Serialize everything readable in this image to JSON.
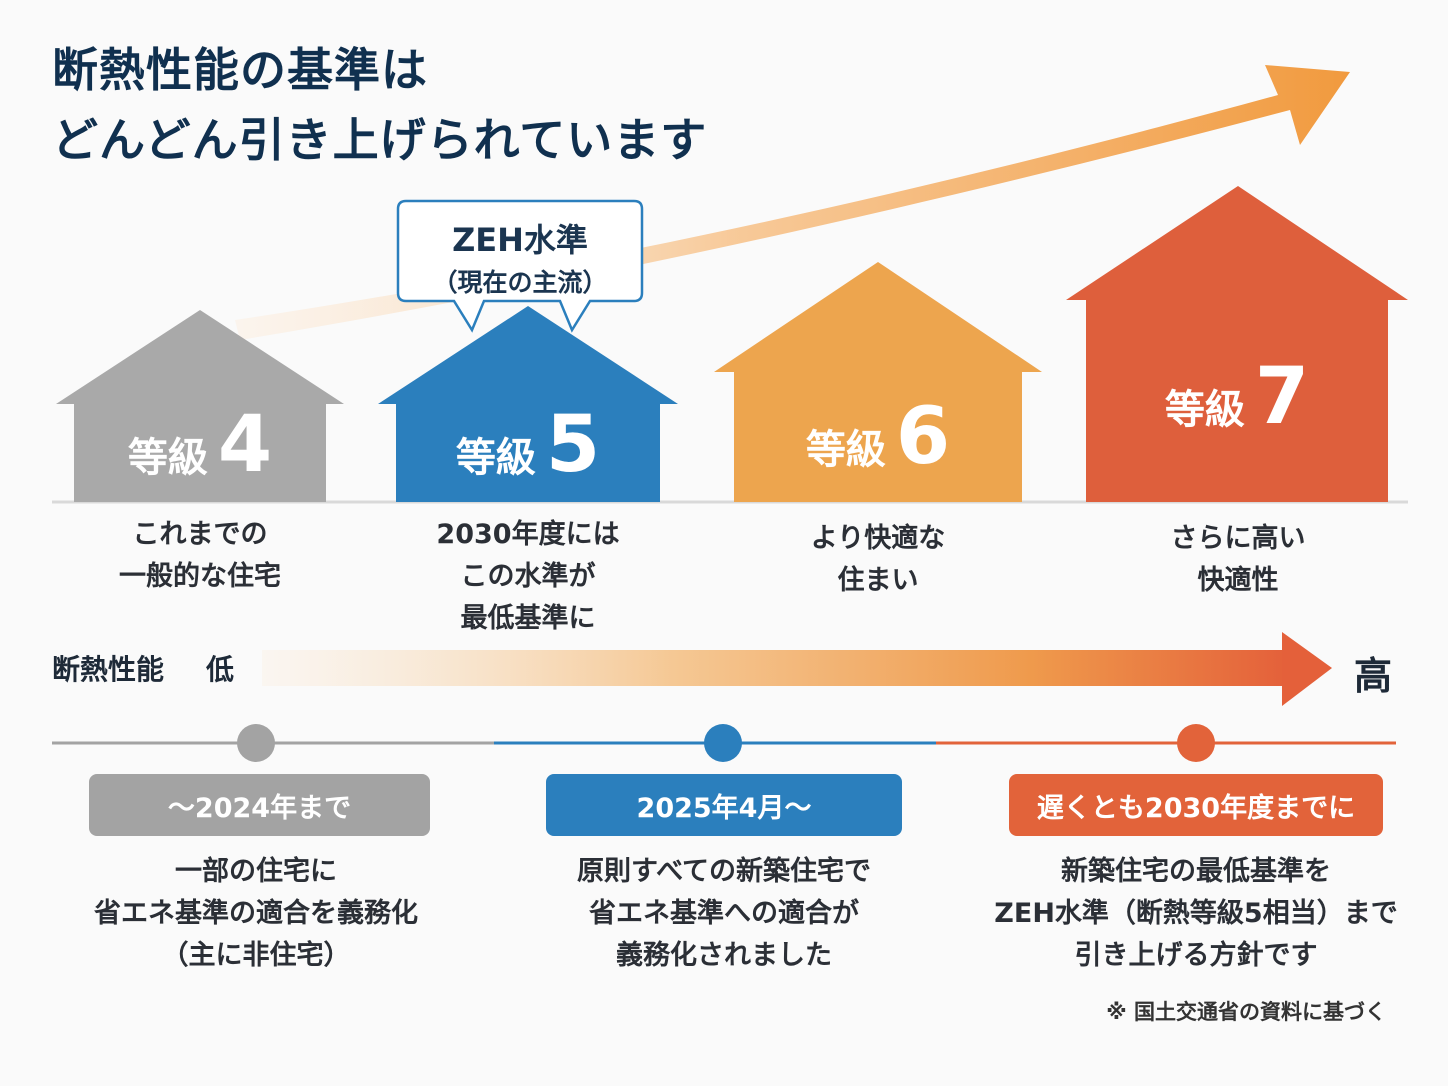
{
  "title": {
    "line1": "断熱性能の基準は",
    "line2": "どんどん引き上げられています"
  },
  "bubble": {
    "line1": "ZEH水準",
    "line2": "（現在の主流）"
  },
  "houses": [
    {
      "label": "等級",
      "number": "4",
      "color": "#a9a9a9",
      "desc": [
        "これまでの",
        "一般的な住宅"
      ]
    },
    {
      "label": "等級",
      "number": "5",
      "color": "#2b7fbd",
      "desc": [
        "2030年度には",
        "この水準が",
        "最低基準に"
      ]
    },
    {
      "label": "等級",
      "number": "6",
      "color": "#eda54e",
      "desc": [
        "より快適な",
        "住まい"
      ]
    },
    {
      "label": "等級",
      "number": "7",
      "color": "#de5f3c",
      "desc": [
        "さらに高い",
        "快適性"
      ]
    }
  ],
  "scale": {
    "label": "断熱性能",
    "low": "低",
    "high": "高"
  },
  "timeline": [
    {
      "period": "〜2024年まで",
      "color": "#a3a3a3",
      "desc": [
        "一部の住宅に",
        "省エネ基準の適合を義務化",
        "（主に非住宅）"
      ]
    },
    {
      "period": "2025年4月〜",
      "color": "#2b7fbd",
      "desc": [
        "原則すべての新築住宅で",
        "省エネ基準への適合が",
        "義務化されました"
      ]
    },
    {
      "period": "遅くとも2030年度までに",
      "color": "#e2633a",
      "desc": [
        "新築住宅の最低基準を",
        "ZEH水準（断熱等級5相当）まで",
        "引き上げる方針です"
      ]
    }
  ],
  "note": "※ 国土交通省の資料に基づく"
}
